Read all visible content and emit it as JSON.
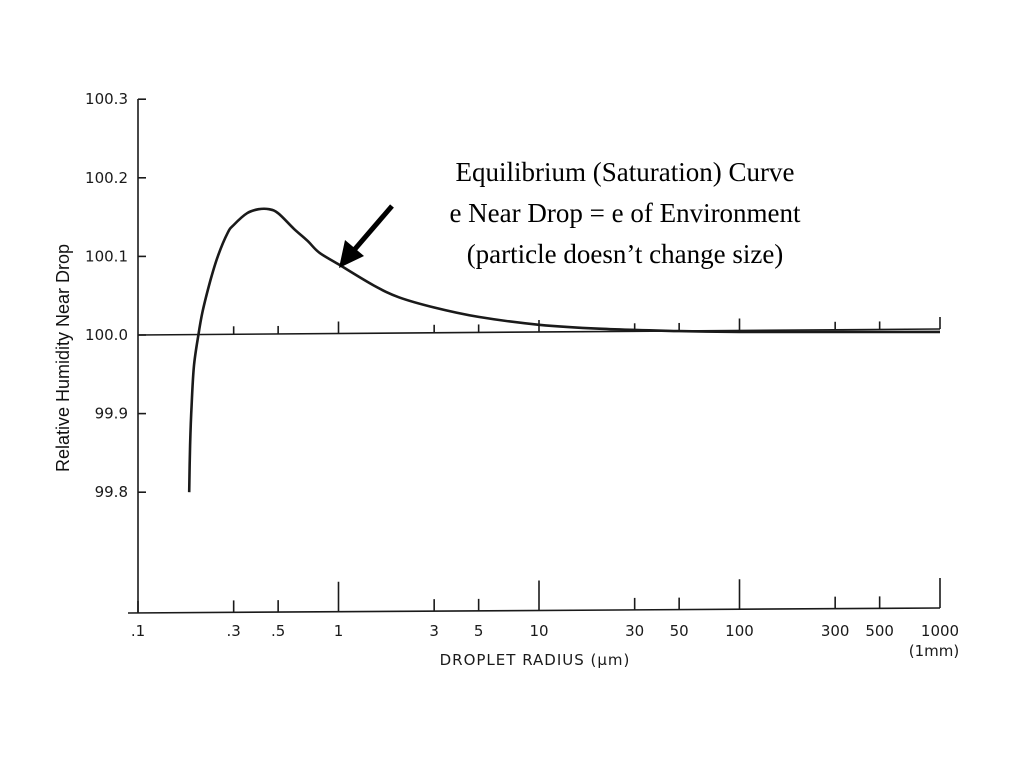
{
  "chart_data": {
    "type": "line",
    "title": "",
    "xlabel": "DROPLET RADIUS (μm)",
    "ylabel": "Relative Humidity Near Drop",
    "x_scale": "log",
    "xlim": [
      0.1,
      1000
    ],
    "ylim": [
      99.63,
      100.3
    ],
    "y_ticks": [
      "100.3",
      "100.2",
      "100.1",
      "100.0",
      "99.9",
      "99.8"
    ],
    "x_ticks": [
      ".1",
      ".3",
      ".5",
      "1",
      "3",
      "5",
      "10",
      "30",
      "50",
      "100",
      "300",
      "500",
      "1000"
    ],
    "x_note": "(1mm)",
    "reference_line": 100.0,
    "series": [
      {
        "x": [
          0.18,
          0.182,
          0.185,
          0.19,
          0.2,
          0.21,
          0.23,
          0.25,
          0.28,
          0.3,
          0.35,
          0.4,
          0.45,
          0.5,
          0.6,
          0.7,
          0.8,
          1.0,
          1.5,
          2,
          3,
          5,
          10,
          20,
          50,
          100,
          300,
          1000
        ],
        "y": [
          99.8,
          99.86,
          99.91,
          99.96,
          100.0,
          100.03,
          100.07,
          100.1,
          100.13,
          100.14,
          100.155,
          100.16,
          100.16,
          100.155,
          100.135,
          100.12,
          100.105,
          100.09,
          100.063,
          100.048,
          100.035,
          100.023,
          100.013,
          100.008,
          100.005,
          100.004,
          100.004,
          100.004
        ]
      }
    ]
  },
  "annotation": {
    "lines": [
      "Equilibrium (Saturation) Curve",
      "e Near Drop = e of Environment",
      "(particle doesn’t change size)"
    ]
  }
}
